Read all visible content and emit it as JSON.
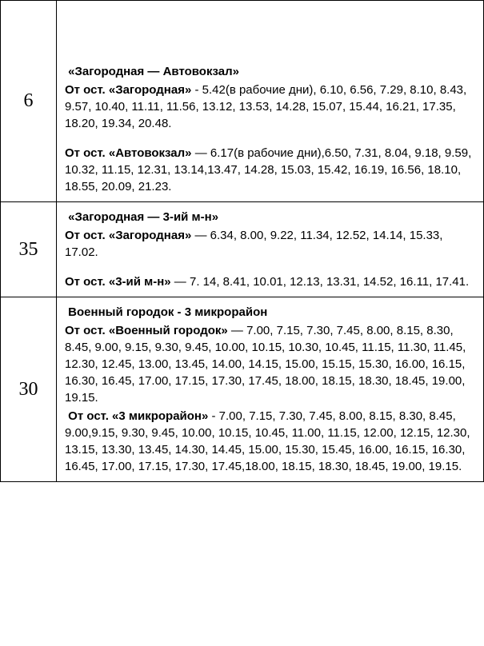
{
  "routes": [
    {
      "num": "6",
      "title": "«Загородная — Автовокзал»",
      "blocks": [
        {
          "label": "От ост. «Загородная»",
          "dash": " - ",
          "times": "5.42(в рабочие дни), 6.10, 6.56, 7.29, 8.10, 8.43, 9.57, 10.40, 11.11, 11.56, 13.12, 13.53, 14.28, 15.07, 15.44, 16.21, 17.35, 18.20,  19.34, 20.48."
        },
        {
          "label": "От ост. «Автовокзал»",
          "dash": " — ",
          "times": "6.17(в рабочие дни),6.50, 7.31, 8.04, 9.18, 9.59, 10.32, 11.15, 12.31, 13.14,13.47, 14.28, 15.03, 15.42, 16.19, 16.56, 18.10, 18.55,  20.09, 21.23."
        }
      ]
    },
    {
      "num": "35",
      "title": "«Загородная — 3-ий м-н»",
      "blocks": [
        {
          "label": "От ост. «Загородная»",
          "dash": " — ",
          "times": "6.34, 8.00, 9.22, 11.34, 12.52, 14.14, 15.33, 17.02."
        },
        {
          "label": "От ост. «3-ий м-н»",
          "dash": " — ",
          "times": "7. 14, 8.41, 10.01, 12.13, 13.31, 14.52, 16.11, 17.41."
        }
      ]
    },
    {
      "num": "30",
      "title": "Военный городок - 3 микрорайон",
      "blocks": [
        {
          "label": "От ост. «Военный городок»",
          "dash": " — ",
          "times": "7.00, 7.15, 7.30, 7.45, 8.00, 8.15, 8.30, 8.45, 9.00, 9.15, 9.30, 9.45, 10.00, 10.15, 10.30, 10.45, 11.15, 11.30, 11.45, 12.30, 12.45, 13.00, 13.45, 14.00, 14.15, 15.00, 15.15, 15.30, 16.00, 16.15, 16.30, 16.45, 17.00, 17.15, 17.30, 17.45, 18.00, 18.15, 18.30, 18.45, 19.00, 19.15."
        },
        {
          "label": "От ост. «3 микрорайон»",
          "dash": " - ",
          "times": "7.00, 7.15, 7.30, 7.45, 8.00, 8.15, 8.30, 8.45, 9.00,9.15, 9.30, 9.45, 10.00, 10.15, 10.45, 11.00, 11.15, 12.00, 12.15, 12.30, 13.15, 13.30, 13.45, 14.30, 14.45, 15.00, 15.30, 15.45, 16.00, 16.15,  16.30, 16.45, 17.00, 17.15, 17.30, 17.45,18.00, 18.15, 18.30, 18.45, 19.00, 19.15."
        }
      ]
    }
  ]
}
